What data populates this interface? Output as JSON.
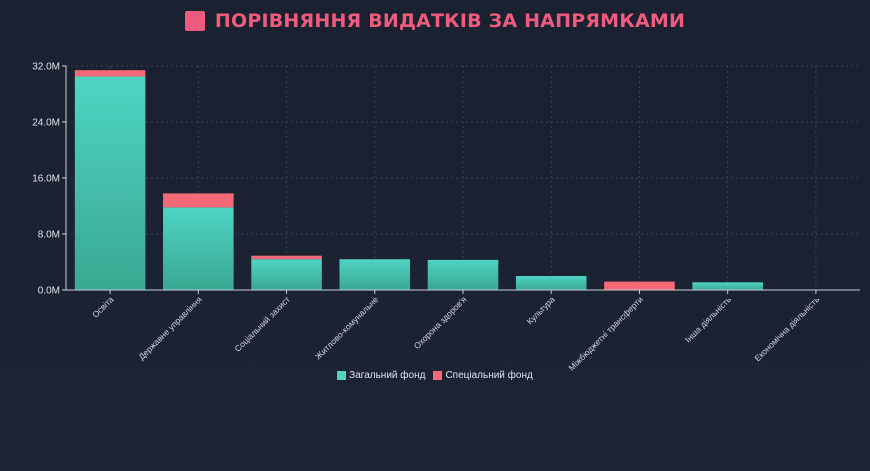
{
  "title": {
    "icon": "square-icon",
    "text": "ПОРІВНЯННЯ ВИДАТКІВ ЗА НАПРЯМКАМИ"
  },
  "colors": {
    "title": "#f05a7e",
    "general_top": "#4fd4c4",
    "general_bottom": "#3aa892",
    "special": "#f46a78",
    "grid": "#3a4558",
    "axis": "#c8d0da"
  },
  "chart_data": {
    "type": "bar",
    "stacked": true,
    "title": "ПОРІВНЯННЯ ВИДАТКІВ ЗА НАПРЯМКАМИ",
    "xlabel": "",
    "ylabel": "",
    "ylim": [
      0,
      32
    ],
    "y_ticks": [
      0,
      8,
      16,
      24,
      32
    ],
    "y_tick_labels": [
      "0.0M",
      "8.0M",
      "16.0M",
      "24.0M",
      "32.0M"
    ],
    "grid": true,
    "legend_position": "bottom",
    "categories": [
      "Освіта",
      "Державне управління",
      "Соціальний захист",
      "Житлово-комунальне",
      "Охорона здоров'я",
      "Культура",
      "Міжбюджетні трансферти",
      "Інша діяльність",
      "Економічна діяльність"
    ],
    "series": [
      {
        "name": "Загальний фонд",
        "values": [
          30.5,
          11.8,
          4.4,
          4.4,
          4.3,
          2.0,
          0.0,
          1.1,
          0.05
        ]
      },
      {
        "name": "Спеціальний фонд",
        "values": [
          0.9,
          2.0,
          0.5,
          0.0,
          0.0,
          0.0,
          1.2,
          0.0,
          0.0
        ]
      }
    ]
  }
}
